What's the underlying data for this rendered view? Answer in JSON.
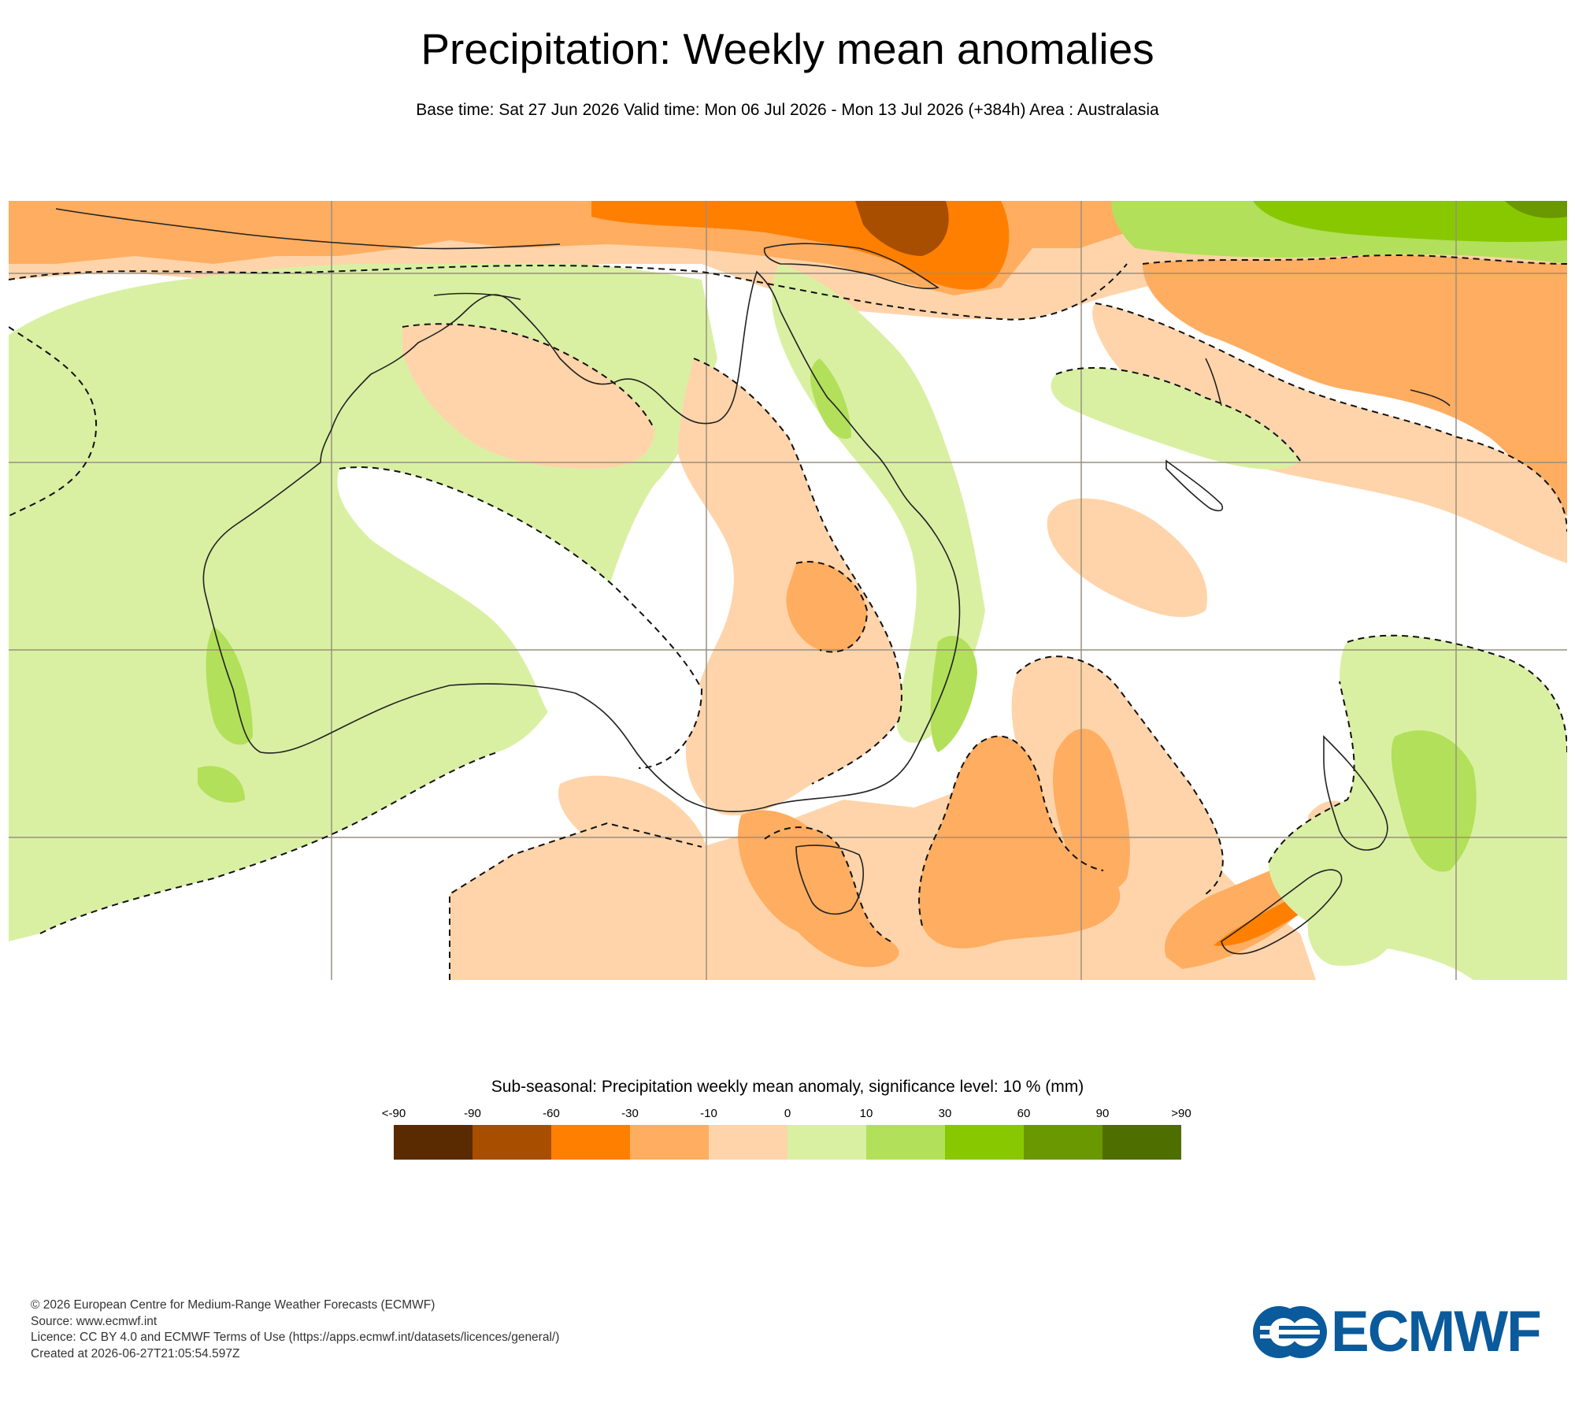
{
  "header": {
    "title": "Precipitation: Weekly mean anomalies",
    "subtitle": "Base time: Sat 27 Jun 2026 Valid time: Mon 06 Jul 2026 - Mon 13 Jul 2026 (+384h) Area : Australasia"
  },
  "legend": {
    "title": "Sub-seasonal: Precipitation weekly mean anomaly, significance level: 10 % (mm)",
    "labels": [
      "<-90",
      "-90",
      "-60",
      "-30",
      "-10",
      "0",
      "10",
      "30",
      "60",
      "90",
      ">90"
    ],
    "colors": [
      "#5a2a00",
      "#a84e00",
      "#ff7f00",
      "#ffad60",
      "#ffd4aa",
      "#d9f0a3",
      "#b2e05a",
      "#88c800",
      "#6a9800",
      "#4f6e00"
    ]
  },
  "map_colors": {
    "strong_dry": "#a84e00",
    "dry": "#ff7f00",
    "moderate_dry": "#ffad60",
    "light_dry": "#ffd4aa",
    "light_wet": "#d9f0a3",
    "wet": "#b2e05a",
    "very_wet": "#88c800",
    "extreme_wet": "#6a9800",
    "coastline": "#222222",
    "gridline": "#9a8f80",
    "significance_contour": "#111111"
  },
  "footer": {
    "copyright": "© 2026 European Centre for Medium-Range Weather Forecasts (ECMWF)",
    "source": "Source: www.ecmwf.int",
    "licence": "Licence: CC BY 4.0 and ECMWF Terms of Use (https://apps.ecmwf.int/datasets/licences/general/)",
    "created": "Created at 2026-06-27T21:05:54.597Z"
  },
  "logo": {
    "text": "ECMWF",
    "color": "#0a5a9c"
  }
}
